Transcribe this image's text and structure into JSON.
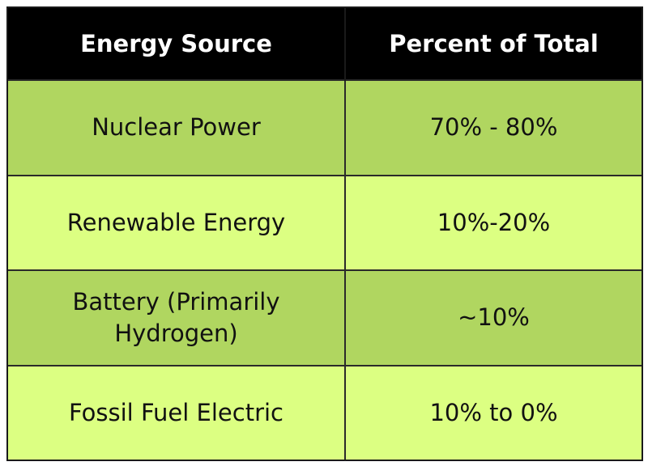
{
  "colors": {
    "header_bg": "#000000",
    "header_text": "#ffffff",
    "row_dark": "#b0d660",
    "row_light": "#dcff82",
    "border": "#1a1a1a"
  },
  "table": {
    "headers": [
      "Energy Source",
      "Percent of Total"
    ],
    "rows": [
      {
        "source": "Nuclear Power",
        "percent": "70% - 80%"
      },
      {
        "source": "Renewable Energy",
        "percent": "10%-20%"
      },
      {
        "source": "Battery (Primarily Hydrogen)",
        "percent": "~10%"
      },
      {
        "source": "Fossil Fuel Electric",
        "percent": "10% to 0%"
      }
    ]
  }
}
